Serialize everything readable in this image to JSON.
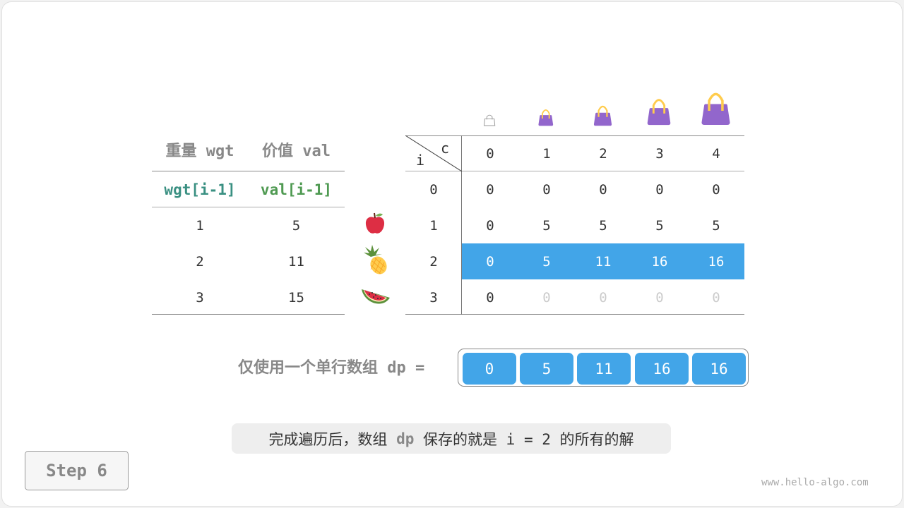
{
  "items_table": {
    "headers": [
      "重量 wgt",
      "价值 val"
    ],
    "subheaders": [
      "wgt[i-1]",
      "val[i-1]"
    ],
    "rows": [
      [
        "1",
        "5"
      ],
      [
        "2",
        "11"
      ],
      [
        "3",
        "15"
      ]
    ],
    "item_icons": [
      "apple-icon",
      "pineapple-icon",
      "watermelon-icon"
    ],
    "colors": {
      "wgt": "#3a9082",
      "val": "#4f9a52"
    }
  },
  "dp_table": {
    "corner_col_label": "c",
    "corner_row_label": "i",
    "col_headers": [
      "0",
      "1",
      "2",
      "3",
      "4"
    ],
    "row_headers": [
      "0",
      "1",
      "2",
      "3"
    ],
    "rows": [
      [
        "0",
        "0",
        "0",
        "0",
        "0"
      ],
      [
        "0",
        "5",
        "5",
        "5",
        "5"
      ],
      [
        "0",
        "5",
        "11",
        "16",
        "16"
      ],
      [
        "0",
        "0",
        "0",
        "0",
        "0"
      ]
    ],
    "highlight_row": 2,
    "highlight_color": "#42a5e8",
    "bag_icons": [
      "empty-bag-icon",
      "bag-icon",
      "bag-icon",
      "bag-icon",
      "bag-icon"
    ]
  },
  "dp_array": {
    "label": "仅使用一个单行数组 dp =",
    "values": [
      "0",
      "5",
      "11",
      "16",
      "16"
    ]
  },
  "caption": {
    "part1": "完成遍历后，数组 ",
    "code": "dp",
    "part2": " 保存的就是 i = 2 的所有的解"
  },
  "step_button": "Step 6",
  "watermark": "www.hello-algo.com"
}
